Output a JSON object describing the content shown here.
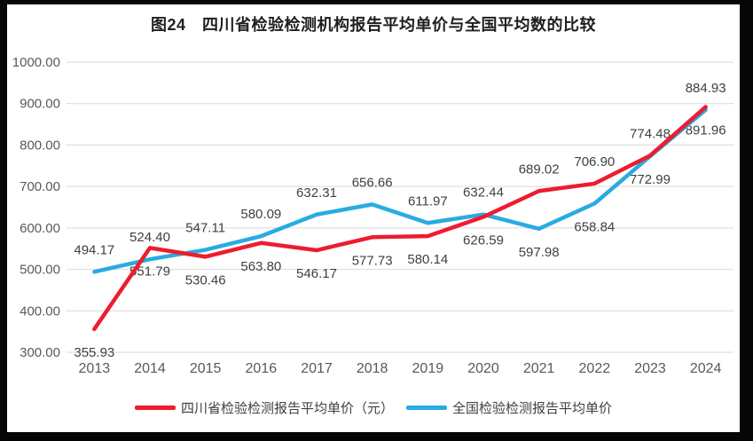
{
  "title": "图24　四川省检验检测机构报告平均单价与全国平均数的比较",
  "chart_data": {
    "type": "line",
    "x": [
      "2013",
      "2014",
      "2015",
      "2016",
      "2017",
      "2018",
      "2019",
      "2020",
      "2021",
      "2022",
      "2023",
      "2024"
    ],
    "series": [
      {
        "name": "全国检验检测报告平均单价",
        "color": "#29abe2",
        "values": [
          494.17,
          524.4,
          547.11,
          580.09,
          632.31,
          656.66,
          611.97,
          632.44,
          597.98,
          658.84,
          772.99,
          884.93
        ],
        "label_pos": [
          "above",
          "above",
          "above",
          "above",
          "above",
          "above",
          "above",
          "above",
          "below",
          "below",
          "below",
          "above"
        ]
      },
      {
        "name": "四川省检验检测报告平均单价（元）",
        "color": "#ed1c2e",
        "values": [
          355.93,
          551.79,
          530.46,
          563.8,
          546.17,
          577.73,
          580.14,
          626.59,
          689.02,
          706.9,
          774.48,
          891.96
        ],
        "label_pos": [
          "below",
          "below",
          "below",
          "below",
          "below",
          "below",
          "below",
          "below",
          "above",
          "above",
          "above",
          "below"
        ]
      }
    ],
    "ylim": [
      300,
      1000
    ],
    "ytick_labels": [
      "300.00",
      "400.00",
      "500.00",
      "600.00",
      "700.00",
      "800.00",
      "900.00",
      "1000.00"
    ],
    "grid": true,
    "legend_position": "bottom",
    "data_labels_shown": true
  },
  "colors": {
    "grid": "#d9d9d9",
    "tick_text": "#595959",
    "data_label_text": "#404040",
    "background": "#ffffff",
    "frame": "#060606"
  },
  "legend": {
    "items": [
      {
        "label": "四川省检验检测报告平均单价（元）",
        "color": "#ed1c2e"
      },
      {
        "label": "全国检验检测报告平均单价",
        "color": "#29abe2"
      }
    ]
  }
}
